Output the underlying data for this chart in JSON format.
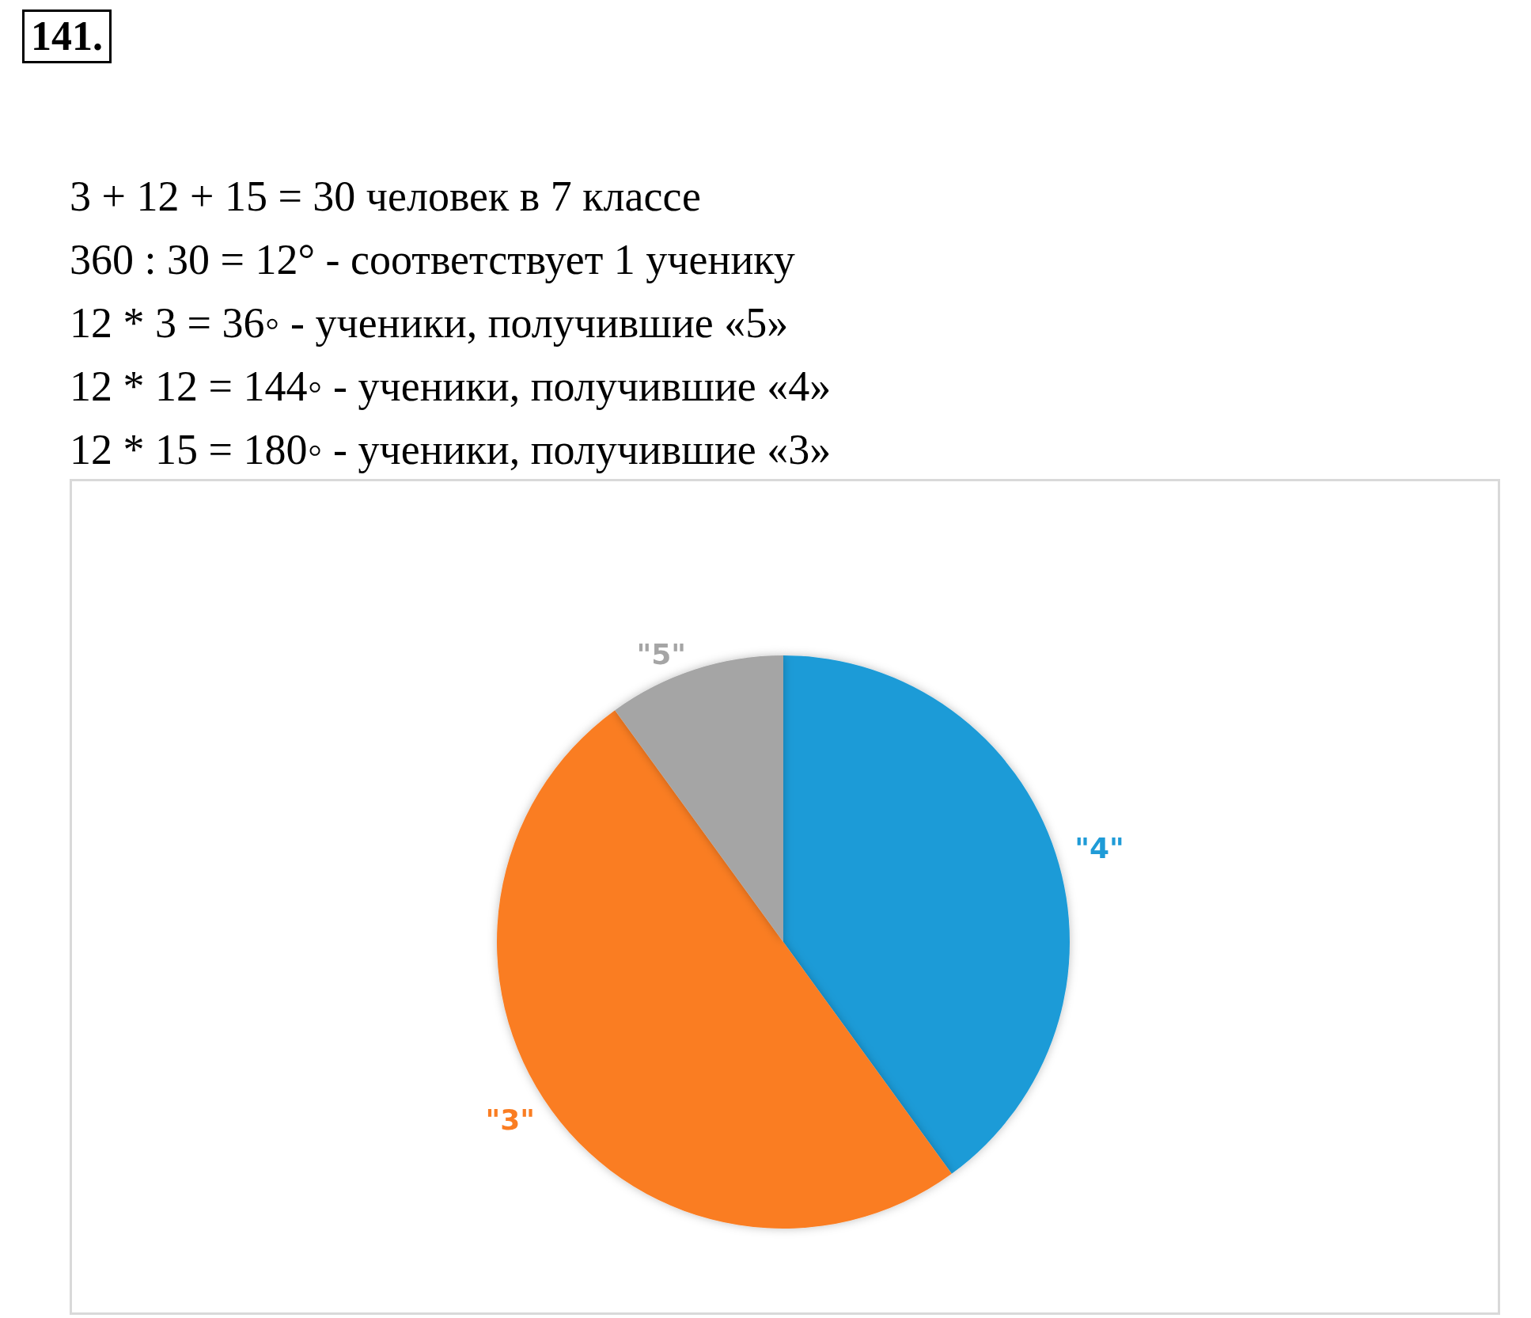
{
  "chart_data": {
    "type": "pie",
    "title": "141.",
    "annotations": [
      "3 + 12 + 15 = 30 человек в 7 классе",
      "360 : 30 = 12° - соответствует 1 ученику",
      "12 * 3 = 36◦ -  ученики, получившие «5»",
      "12 * 12 = 144◦ -  ученики, получившие «4»",
      "12 * 15 = 180◦ -  ученики, получившие «3»"
    ],
    "categories": [
      "\"4\"",
      "\"3\"",
      "\"5\""
    ],
    "values": [
      40,
      50,
      10
    ],
    "colors": [
      "#1f9bd7",
      "#fa7d22",
      "#a5a5a5"
    ],
    "legend": false
  }
}
